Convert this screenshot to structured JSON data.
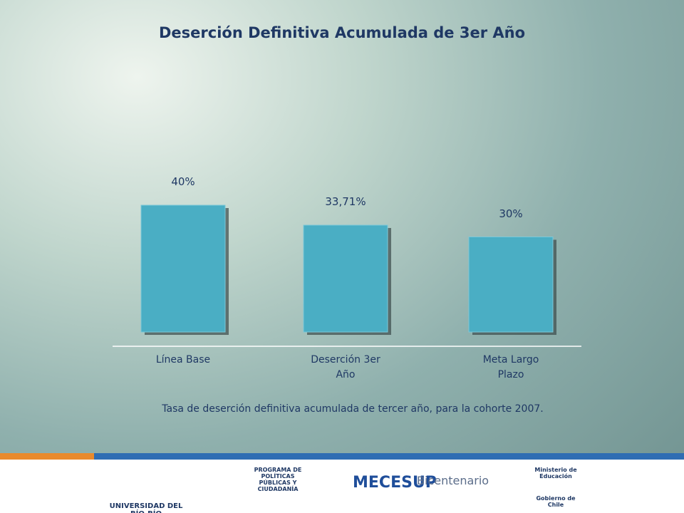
{
  "chart_data": {
    "type": "bar",
    "title": "Deserción Definitiva Acumulada de 3er Año",
    "categories": [
      "Línea Base",
      "Deserción 3er Año",
      "Meta Largo Plazo"
    ],
    "values": [
      40,
      33.71,
      30
    ],
    "value_labels": [
      "40%",
      "33,71%",
      "30%"
    ],
    "color": "#4aaec4",
    "caption": "Tasa de deserción definitiva acumulada de tercer año, para la cohorte 2007."
  },
  "footer": {
    "logos": [
      "UNIVERSIDAD DEL BÍO-BÍO",
      "PROGRAMA DE POLÍTICAS PÚBLICAS Y CIUDADANÍA",
      "MECESUP",
      "Bicentenario",
      "Ministerio de Educación",
      "Gobierno de Chile"
    ]
  }
}
